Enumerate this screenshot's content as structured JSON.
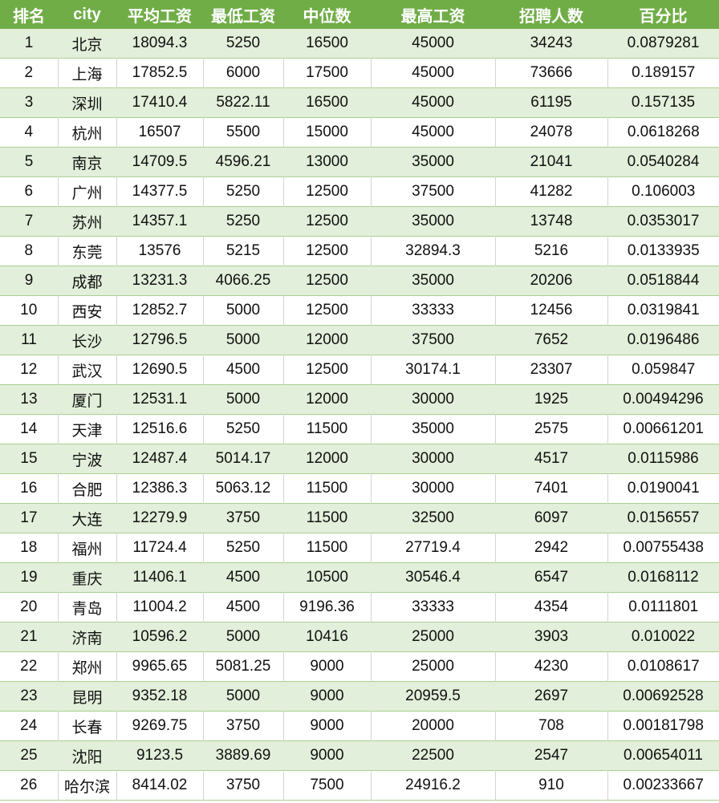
{
  "colors": {
    "header": "#70AD47",
    "band": "#E2EFDA",
    "rule": "#A9D08E"
  },
  "headers": [
    "排名",
    "city",
    "平均工资",
    "最低工资",
    "中位数",
    "最高工资",
    "招聘人数",
    "百分比"
  ],
  "rows": [
    [
      "1",
      "北京",
      "18094.3",
      "5250",
      "16500",
      "45000",
      "34243",
      "0.0879281"
    ],
    [
      "2",
      "上海",
      "17852.5",
      "6000",
      "17500",
      "45000",
      "73666",
      "0.189157"
    ],
    [
      "3",
      "深圳",
      "17410.4",
      "5822.11",
      "16500",
      "45000",
      "61195",
      "0.157135"
    ],
    [
      "4",
      "杭州",
      "16507",
      "5500",
      "15000",
      "45000",
      "24078",
      "0.0618268"
    ],
    [
      "5",
      "南京",
      "14709.5",
      "4596.21",
      "13000",
      "35000",
      "21041",
      "0.0540284"
    ],
    [
      "6",
      "广州",
      "14377.5",
      "5250",
      "12500",
      "37500",
      "41282",
      "0.106003"
    ],
    [
      "7",
      "苏州",
      "14357.1",
      "5250",
      "12500",
      "35000",
      "13748",
      "0.0353017"
    ],
    [
      "8",
      "东莞",
      "13576",
      "5215",
      "12500",
      "32894.3",
      "5216",
      "0.0133935"
    ],
    [
      "9",
      "成都",
      "13231.3",
      "4066.25",
      "12500",
      "35000",
      "20206",
      "0.0518844"
    ],
    [
      "10",
      "西安",
      "12852.7",
      "5000",
      "12500",
      "33333",
      "12456",
      "0.0319841"
    ],
    [
      "11",
      "长沙",
      "12796.5",
      "5000",
      "12000",
      "37500",
      "7652",
      "0.0196486"
    ],
    [
      "12",
      "武汉",
      "12690.5",
      "4500",
      "12500",
      "30174.1",
      "23307",
      "0.059847"
    ],
    [
      "13",
      "厦门",
      "12531.1",
      "5000",
      "12000",
      "30000",
      "1925",
      "0.00494296"
    ],
    [
      "14",
      "天津",
      "12516.6",
      "5250",
      "11500",
      "35000",
      "2575",
      "0.00661201"
    ],
    [
      "15",
      "宁波",
      "12487.4",
      "5014.17",
      "12000",
      "30000",
      "4517",
      "0.0115986"
    ],
    [
      "16",
      "合肥",
      "12386.3",
      "5063.12",
      "11500",
      "30000",
      "7401",
      "0.0190041"
    ],
    [
      "17",
      "大连",
      "12279.9",
      "3750",
      "11500",
      "32500",
      "6097",
      "0.0156557"
    ],
    [
      "18",
      "福州",
      "11724.4",
      "5250",
      "11500",
      "27719.4",
      "2942",
      "0.00755438"
    ],
    [
      "19",
      "重庆",
      "11406.1",
      "4500",
      "10500",
      "30546.4",
      "6547",
      "0.0168112"
    ],
    [
      "20",
      "青岛",
      "11004.2",
      "4500",
      "9196.36",
      "33333",
      "4354",
      "0.0111801"
    ],
    [
      "21",
      "济南",
      "10596.2",
      "5000",
      "10416",
      "25000",
      "3903",
      "0.010022"
    ],
    [
      "22",
      "郑州",
      "9965.65",
      "5081.25",
      "9000",
      "25000",
      "4230",
      "0.0108617"
    ],
    [
      "23",
      "昆明",
      "9352.18",
      "5000",
      "9000",
      "20959.5",
      "2697",
      "0.00692528"
    ],
    [
      "24",
      "长春",
      "9269.75",
      "3750",
      "9000",
      "20000",
      "708",
      "0.00181798"
    ],
    [
      "25",
      "沈阳",
      "9123.5",
      "3889.69",
      "9000",
      "22500",
      "2547",
      "0.00654011"
    ],
    [
      "26",
      "哈尔滨",
      "8414.02",
      "3750",
      "7500",
      "24916.2",
      "910",
      "0.00233667"
    ]
  ]
}
